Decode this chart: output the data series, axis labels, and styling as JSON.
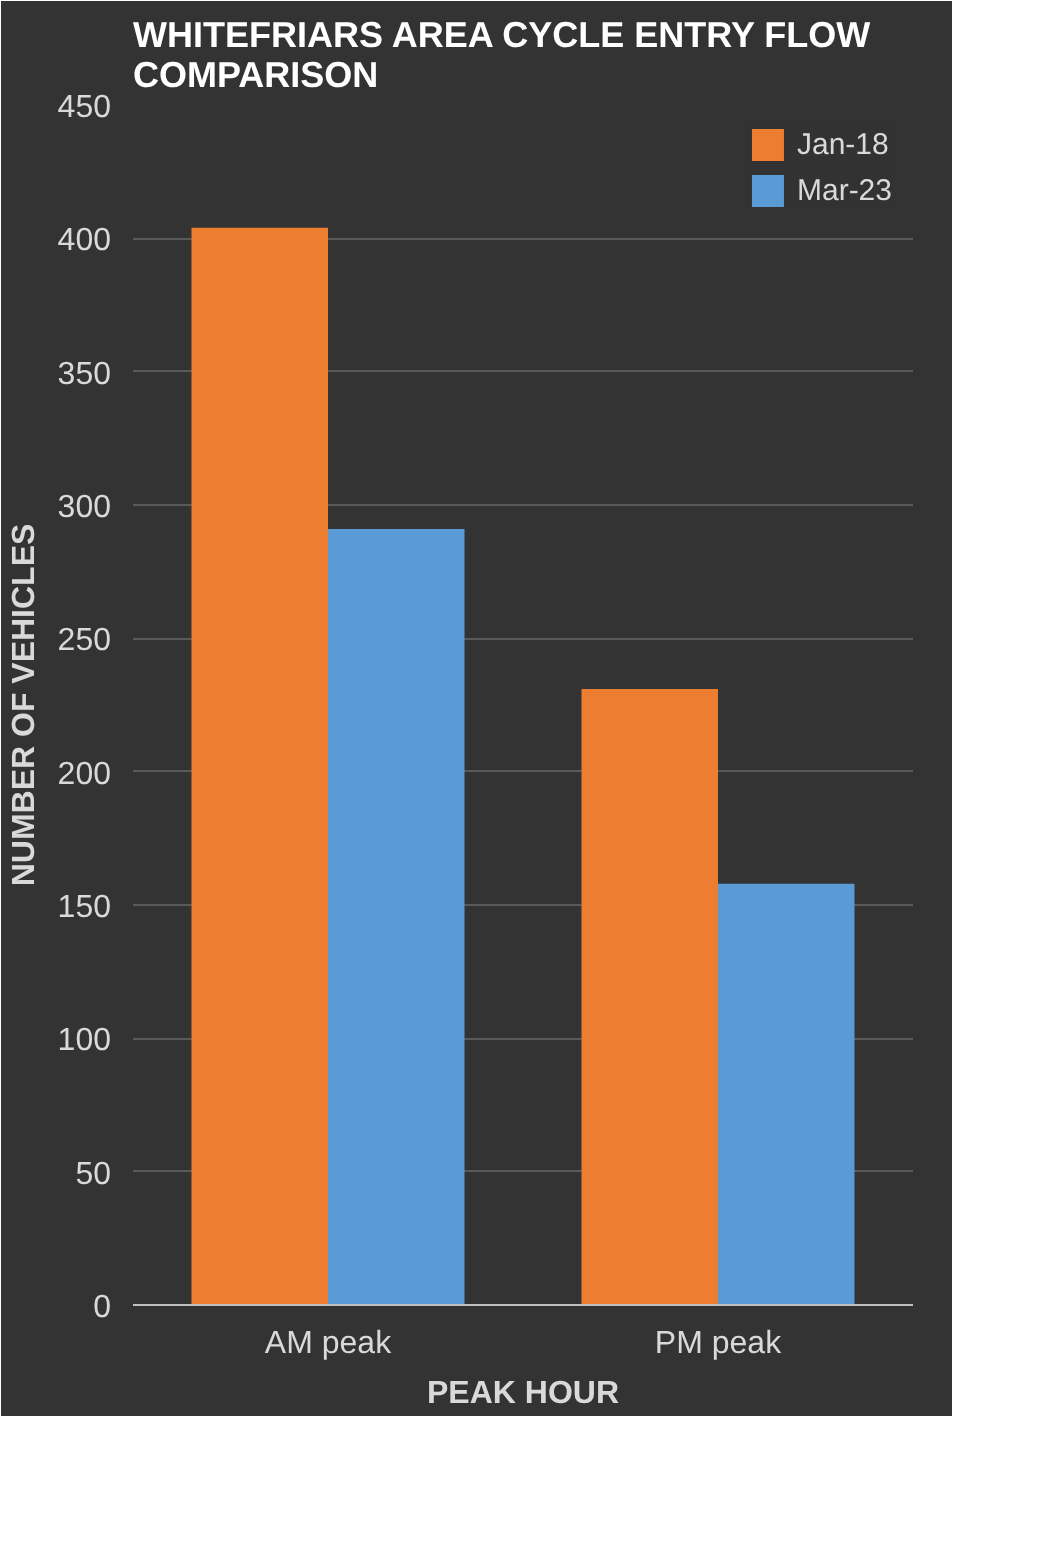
{
  "chart_data": {
    "type": "bar",
    "title": "WHITEFRIARS AREA CYCLE ENTRY FLOW\nCOMPARISON",
    "xlabel": "PEAK HOUR",
    "ylabel": "NUMBER OF VEHICLES",
    "categories": [
      "AM peak",
      "PM peak"
    ],
    "series": [
      {
        "name": "Jan-18",
        "color": "#ed7d31",
        "values": [
          404,
          231
        ]
      },
      {
        "name": "Mar-23",
        "color": "#5b9bd5",
        "values": [
          291,
          158
        ]
      }
    ],
    "ylim": [
      0,
      450
    ],
    "yticks": [
      0,
      50,
      100,
      150,
      200,
      250,
      300,
      350,
      400,
      450
    ],
    "grid": "y",
    "legend": "top right"
  }
}
